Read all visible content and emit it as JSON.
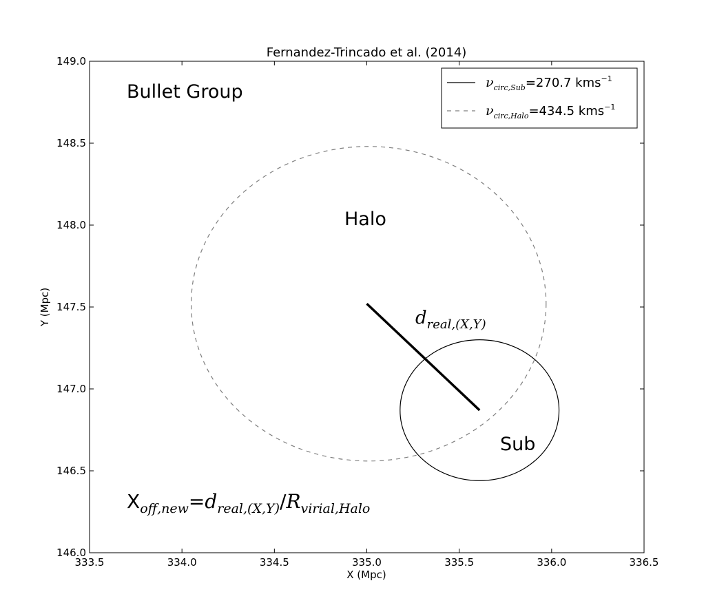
{
  "chart_data": {
    "type": "scatter",
    "title": "Fernandez-Trincado et al. (2014)",
    "xlabel": "X (Mpc)",
    "ylabel": "Y (Mpc)",
    "xlim": [
      333.5,
      336.5
    ],
    "ylim": [
      146.0,
      149.0
    ],
    "xticks": [
      "333.5",
      "334.0",
      "334.5",
      "335.0",
      "335.5",
      "336.0",
      "336.5"
    ],
    "yticks": [
      "146.0",
      "146.5",
      "147.0",
      "147.5",
      "148.0",
      "148.5",
      "149.0"
    ],
    "grid": false,
    "legend_position": "top-right",
    "shapes": [
      {
        "kind": "circle",
        "name": "Sub",
        "center": [
          335.61,
          146.87
        ],
        "radius": 0.43,
        "style": "solid",
        "color": "#000000"
      },
      {
        "kind": "circle",
        "name": "Halo",
        "center": [
          335.01,
          147.52
        ],
        "radius": 0.96,
        "style": "dashed",
        "color": "#7f7f7f"
      }
    ],
    "segment": {
      "from": [
        335.0,
        147.52
      ],
      "to": [
        335.61,
        146.87
      ],
      "color": "#000000"
    },
    "legend": [
      {
        "symbol": "ν",
        "sub": "circ,Sub",
        "text": "=270.7 kms",
        "sup": "−1",
        "style": "solid"
      },
      {
        "symbol": "ν",
        "sub": "circ,Halo",
        "text": "=434.5 kms",
        "sup": "−1",
        "style": "dashed"
      }
    ],
    "annotations": {
      "group_name": "Bullet Group",
      "halo_label": "Halo",
      "sub_label": "Sub",
      "distance_label": {
        "d": "d",
        "sub": "real,(X,Y)"
      },
      "formula": {
        "x": "X",
        "x_sub": "off,new",
        "eq": "=",
        "d": "d",
        "d_sub": "real,(X,Y)",
        "slash": "/",
        "r": "R",
        "r_sub": "virial,Halo"
      }
    }
  }
}
